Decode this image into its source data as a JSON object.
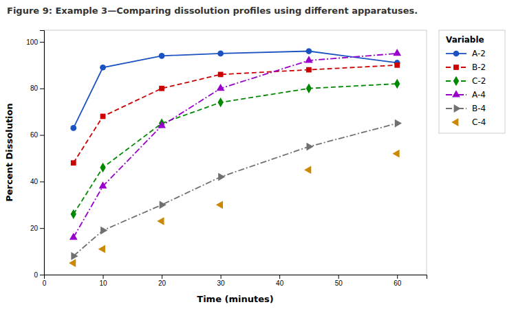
{
  "chart_data": {
    "type": "line",
    "title": "Figure 9: Example 3—Comparing dissolution profiles using different apparatuses.",
    "x_label": "Time (minutes)",
    "y_label": "Percent Dissolution",
    "x": [
      5,
      10,
      20,
      30,
      45,
      60
    ],
    "series": [
      {
        "name": "A-2",
        "color": "#1a52c2",
        "marker": "circle",
        "line_style": "solid",
        "values": [
          63,
          89,
          94,
          95,
          96,
          91
        ]
      },
      {
        "name": "B-2",
        "color": "#cc0000",
        "marker": "square",
        "line_style": "dashed",
        "values": [
          48,
          68,
          80,
          86,
          88,
          90
        ]
      },
      {
        "name": "C-2",
        "color": "#008800",
        "marker": "diamond",
        "line_style": "dashed",
        "values": [
          26,
          46,
          65,
          74,
          80,
          82
        ]
      },
      {
        "name": "A-4",
        "color": "#9900cc",
        "marker": "triangle-up",
        "line_style": "dashdot",
        "values": [
          16,
          38,
          64,
          80,
          92,
          95
        ]
      },
      {
        "name": "B-4",
        "color": "#707070",
        "marker": "triangle-right",
        "line_style": "dashdot",
        "values": [
          8,
          19,
          30,
          42,
          55,
          65
        ]
      },
      {
        "name": "C-4",
        "color": "#cc8800",
        "marker": "triangle-left",
        "line_style": "none",
        "values": [
          5,
          11,
          23,
          30,
          45,
          52
        ]
      }
    ],
    "xlim": [
      0,
      65
    ],
    "ylim": [
      0,
      105
    ],
    "xticks": [
      0,
      10,
      20,
      30,
      40,
      50,
      60
    ],
    "yticks": [
      0,
      20,
      40,
      60,
      80,
      100
    ],
    "legend_title": "Variable",
    "legend": "right",
    "grid": false
  }
}
